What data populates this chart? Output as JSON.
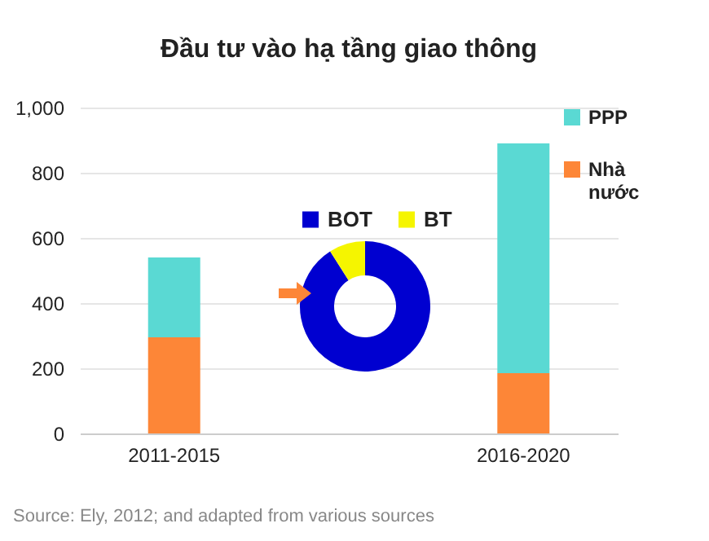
{
  "chart_data": [
    {
      "type": "bar",
      "title": "Đầu tư vào hạ tầng giao thông",
      "categories": [
        "2011-2015",
        "2016-2020"
      ],
      "stacked": true,
      "series": [
        {
          "name": "Nhà nước",
          "color": "#fd8637",
          "values": [
            295,
            185
          ]
        },
        {
          "name": "PPP",
          "color": "#5ad9d3",
          "values": [
            245,
            705
          ]
        }
      ],
      "ylim": [
        0,
        1000
      ],
      "yticks": [
        0,
        200,
        400,
        600,
        800,
        {
          "value": 1000,
          "label": "1,000"
        }
      ],
      "grid": "y",
      "legend": "right",
      "annotations": [
        "Source: Ely, 2012; and adapted from various sources"
      ]
    },
    {
      "type": "donut",
      "categories": [
        "BOT",
        "BT"
      ],
      "values": [
        91,
        9
      ],
      "colors": [
        "#0000d0",
        "#f5f500"
      ],
      "legend": "top"
    }
  ]
}
